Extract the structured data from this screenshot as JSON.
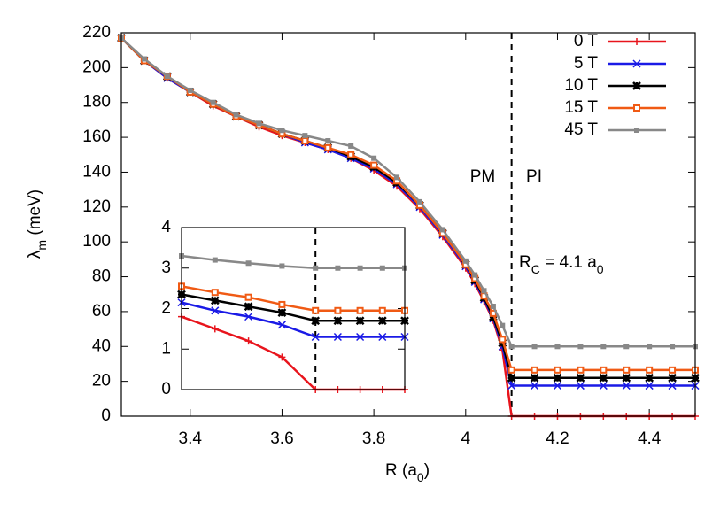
{
  "chart_data": [
    {
      "type": "line",
      "x_label": [
        {
          "text": "R ("
        },
        {
          "text": "a"
        },
        {
          "text": "0",
          "sub": true
        },
        {
          "text": ")"
        }
      ],
      "y_label": [
        {
          "text": "λ"
        },
        {
          "text": "m",
          "sub": true
        },
        {
          "text": " (meV)"
        }
      ],
      "x": [
        3.25,
        3.3,
        3.35,
        3.4,
        3.45,
        3.5,
        3.55,
        3.6,
        3.65,
        3.7,
        3.75,
        3.8,
        3.85,
        3.9,
        3.95,
        4.0,
        4.02,
        4.04,
        4.06,
        4.08,
        4.1,
        4.15,
        4.2,
        4.25,
        4.3,
        4.35,
        4.4,
        4.45,
        4.5
      ],
      "series": [
        {
          "name": "0 T",
          "color": "#e8141c",
          "marker": "plus",
          "values": [
            217,
            204,
            194,
            186,
            178,
            172,
            166,
            161,
            157,
            153,
            148,
            141,
            132,
            119,
            103,
            85,
            76,
            66,
            55,
            38,
            0,
            0,
            0,
            0,
            0,
            0,
            0,
            0,
            0
          ]
        },
        {
          "name": "5 T",
          "color": "#1a1ae6",
          "marker": "cross",
          "values": [
            217,
            204,
            194,
            186,
            179,
            172,
            167,
            162,
            157,
            153,
            148,
            142,
            133,
            120,
            104,
            86,
            77,
            67,
            56,
            40,
            17.5,
            17.5,
            17.5,
            17.5,
            17.5,
            17.5,
            17.5,
            17.5,
            17.5
          ]
        },
        {
          "name": "10 T",
          "color": "#000000",
          "marker": "star",
          "values": [
            217,
            204,
            195,
            186,
            179,
            172,
            167,
            162,
            158,
            154,
            149,
            143,
            134,
            121,
            105,
            87,
            78,
            68,
            57,
            42,
            22,
            22,
            22,
            22,
            22,
            22,
            22,
            22,
            22
          ]
        },
        {
          "name": "15 T",
          "color": "#f05a14",
          "marker": "open-square",
          "values": [
            217,
            204,
            195,
            186,
            179,
            172,
            167,
            162,
            158,
            154,
            150,
            144,
            135,
            121,
            105,
            87,
            79,
            69,
            59,
            44,
            26.5,
            26.5,
            26.5,
            26.5,
            26.5,
            26.5,
            26.5,
            26.5,
            26.5
          ]
        },
        {
          "name": "45 T",
          "color": "#888888",
          "marker": "square",
          "values": [
            217,
            205,
            195,
            187,
            180,
            173,
            168,
            164,
            161,
            158,
            155,
            148,
            137,
            123,
            107,
            89,
            81,
            72,
            63,
            52,
            40,
            40,
            40,
            40,
            40,
            40,
            40,
            40,
            40
          ]
        }
      ],
      "xlim": [
        3.25,
        4.5
      ],
      "xticks": [
        3.4,
        3.6,
        3.8,
        4,
        4.2,
        4.4
      ],
      "ylim": [
        0,
        220
      ],
      "yticks": [
        0,
        20,
        40,
        60,
        80,
        100,
        120,
        140,
        160,
        180,
        200,
        220
      ],
      "dashed_line_x": 4.1,
      "annotations": [
        "PM",
        "PI"
      ],
      "rc_label": [
        {
          "text": "R"
        },
        {
          "text": "C",
          "sub": true
        },
        {
          "text": " = 4.1 a"
        },
        {
          "text": "0",
          "sub": true
        }
      ],
      "legend": "upper right"
    },
    {
      "type": "line",
      "x": [
        4.04,
        4.055,
        4.07,
        4.085,
        4.1,
        4.11,
        4.12,
        4.13,
        4.14
      ],
      "series": [
        {
          "color": "#e8141c",
          "marker": "plus",
          "values": [
            1.8,
            1.5,
            1.2,
            0.8,
            0,
            0,
            0,
            0,
            0
          ]
        },
        {
          "color": "#1a1ae6",
          "marker": "cross",
          "values": [
            2.15,
            1.95,
            1.8,
            1.6,
            1.3,
            1.3,
            1.3,
            1.3,
            1.3
          ]
        },
        {
          "color": "#000000",
          "marker": "star",
          "values": [
            2.35,
            2.2,
            2.05,
            1.9,
            1.7,
            1.7,
            1.7,
            1.7,
            1.7
          ]
        },
        {
          "color": "#f05a14",
          "marker": "open-square",
          "values": [
            2.55,
            2.4,
            2.28,
            2.1,
            1.95,
            1.95,
            1.95,
            1.95,
            1.95
          ]
        },
        {
          "color": "#888888",
          "marker": "square",
          "values": [
            3.3,
            3.2,
            3.12,
            3.05,
            3.0,
            3.0,
            3.0,
            3.0,
            3.0
          ]
        }
      ],
      "xlim": [
        4.04,
        4.14
      ],
      "ylim": [
        0,
        4
      ],
      "yticks": [
        0,
        1,
        2,
        3,
        4
      ],
      "dashed_line_x": 4.1
    }
  ]
}
